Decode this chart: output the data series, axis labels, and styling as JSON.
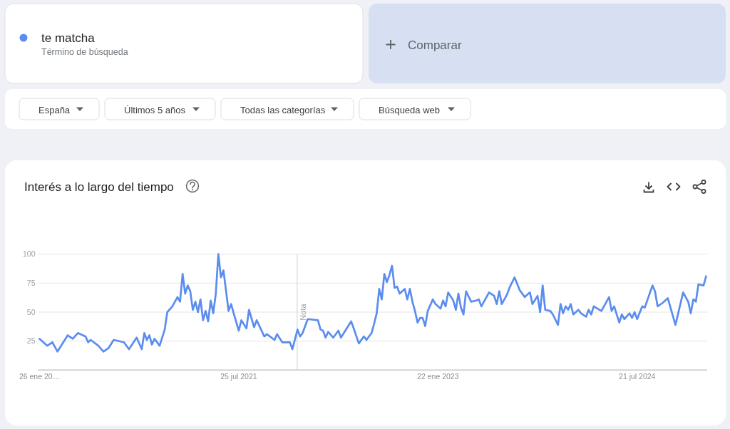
{
  "chart_data": {
    "type": "line",
    "title": "Interés a lo largo del tiempo",
    "annotations": [
      "Término de búsqueda",
      "Comparar",
      "España",
      "Últimos 5 años",
      "Todas las categorías",
      "Búsqueda web"
    ],
    "x": [
      "2020-01-26",
      "2020-02-16",
      "2020-03-01",
      "2020-03-15",
      "2020-04-12",
      "2020-04-26",
      "2020-05-10",
      "2020-05-31",
      "2020-06-07",
      "2020-06-14",
      "2020-07-05",
      "2020-07-19",
      "2020-08-02",
      "2020-08-16",
      "2020-09-13",
      "2020-09-27",
      "2020-10-18",
      "2020-11-01",
      "2020-11-08",
      "2020-11-15",
      "2020-11-22",
      "2020-11-29",
      "2020-12-06",
      "2020-12-20",
      "2021-01-03",
      "2021-01-10",
      "2021-01-24",
      "2021-02-07",
      "2021-02-14",
      "2021-02-21",
      "2021-02-28",
      "2021-03-07",
      "2021-03-14",
      "2021-03-21",
      "2021-03-28",
      "2021-04-04",
      "2021-04-11",
      "2021-04-18",
      "2021-04-25",
      "2021-05-02",
      "2021-05-09",
      "2021-05-16",
      "2021-05-23",
      "2021-05-30",
      "2021-06-06",
      "2021-06-13",
      "2021-06-27",
      "2021-07-04",
      "2021-07-11",
      "2021-07-25",
      "2021-08-01",
      "2021-08-15",
      "2021-08-22",
      "2021-09-05",
      "2021-09-12",
      "2021-10-03",
      "2021-10-10",
      "2021-10-31",
      "2021-11-07",
      "2021-11-21",
      "2021-12-12",
      "2021-12-19",
      "2022-01-02",
      "2022-01-09",
      "2022-01-16",
      "2022-01-30",
      "2022-02-27",
      "2022-03-06",
      "2022-03-13",
      "2022-03-20",
      "2022-03-27",
      "2022-04-10",
      "2022-04-24",
      "2022-05-01",
      "2022-05-29",
      "2022-06-05",
      "2022-06-19",
      "2022-07-03",
      "2022-07-10",
      "2022-07-24",
      "2022-07-31",
      "2022-08-07",
      "2022-08-14",
      "2022-08-21",
      "2022-08-28",
      "2022-09-04",
      "2022-09-11",
      "2022-09-18",
      "2022-09-25",
      "2022-10-02",
      "2022-10-09",
      "2022-10-23",
      "2022-10-30",
      "2022-11-06",
      "2022-11-13",
      "2022-11-20",
      "2022-11-27",
      "2022-12-04",
      "2022-12-11",
      "2022-12-18",
      "2022-12-25",
      "2023-01-08",
      "2023-01-15",
      "2023-01-29",
      "2023-02-05",
      "2023-02-12",
      "2023-02-19",
      "2023-03-05",
      "2023-03-12",
      "2023-03-19",
      "2023-03-26",
      "2023-04-02",
      "2023-04-09",
      "2023-04-23",
      "2023-05-07",
      "2023-05-14",
      "2023-05-21",
      "2023-05-28",
      "2023-06-11",
      "2023-06-25",
      "2023-07-02",
      "2023-07-09",
      "2023-07-16",
      "2023-07-30",
      "2023-08-06",
      "2023-08-20",
      "2023-09-03",
      "2023-09-17",
      "2023-10-01",
      "2023-10-08",
      "2023-10-22",
      "2023-10-29",
      "2023-11-05",
      "2023-11-12",
      "2023-11-26",
      "2023-12-03",
      "2023-12-17",
      "2023-12-24",
      "2023-12-31",
      "2024-01-07",
      "2024-01-14",
      "2024-01-21",
      "2024-01-28",
      "2024-02-11",
      "2024-02-18",
      "2024-03-03",
      "2024-03-10",
      "2024-03-17",
      "2024-03-24",
      "2024-04-14",
      "2024-05-05",
      "2024-05-12",
      "2024-05-19",
      "2024-06-02",
      "2024-06-09",
      "2024-06-16",
      "2024-06-30",
      "2024-07-07",
      "2024-07-14",
      "2024-07-21",
      "2024-08-04",
      "2024-08-11",
      "2024-09-01",
      "2024-09-08",
      "2024-09-15",
      "2024-09-29",
      "2024-10-13",
      "2024-11-03",
      "2024-11-24",
      "2024-12-08",
      "2024-12-15",
      "2024-12-22",
      "2024-12-29",
      "2025-01-05",
      "2025-01-19",
      "2025-01-26"
    ],
    "series": [
      {
        "name": "te matcha",
        "color": "#5b8def",
        "values": [
          27,
          21,
          24,
          16,
          30,
          27,
          32,
          29,
          24,
          26,
          21,
          16,
          19,
          26,
          24,
          18,
          28,
          18,
          32,
          26,
          30,
          22,
          27,
          21,
          35,
          50,
          55,
          63,
          59,
          83,
          66,
          73,
          68,
          52,
          59,
          50,
          61,
          43,
          51,
          42,
          60,
          49,
          66,
          100,
          80,
          86,
          51,
          57,
          49,
          34,
          43,
          36,
          52,
          37,
          43,
          29,
          31,
          26,
          31,
          24,
          24,
          18,
          35,
          29,
          32,
          44,
          43,
          35,
          34,
          28,
          33,
          28,
          34,
          28,
          42,
          36,
          23,
          29,
          26,
          32,
          40,
          49,
          70,
          61,
          83,
          76,
          82,
          90,
          71,
          72,
          66,
          70,
          61,
          70,
          59,
          51,
          41,
          45,
          45,
          38,
          51,
          61,
          57,
          53,
          60,
          55,
          67,
          60,
          52,
          66,
          54,
          48,
          68,
          59,
          60,
          61,
          55,
          59,
          67,
          64,
          57,
          68,
          57,
          65,
          71,
          80,
          69,
          63,
          67,
          57,
          64,
          50,
          73,
          52,
          51,
          48,
          39,
          57,
          49,
          55,
          52,
          57,
          48,
          52,
          49,
          46,
          52,
          48,
          55,
          51,
          63,
          51,
          55,
          41,
          48,
          44,
          49,
          45,
          50,
          44,
          55,
          54,
          73,
          68,
          55,
          58,
          62,
          39,
          67,
          59,
          49,
          61,
          59,
          74,
          73,
          81
        ]
      }
    ],
    "xlim": [
      "2020-01-21",
      "2025-01-29"
    ],
    "xticks": [
      {
        "value": "2020-01-26",
        "label": "26 ene 20…"
      },
      {
        "value": "2021-07-25",
        "label": "25 jul 2021"
      },
      {
        "value": "2023-01-22",
        "label": "22 ene 2023"
      },
      {
        "value": "2024-07-21",
        "label": "21 jul 2024"
      }
    ],
    "ylim": [
      0,
      100
    ],
    "yticks": [
      25,
      50,
      75,
      100
    ],
    "grid": "y",
    "legend": "top left",
    "ref_lines": [
      {
        "axis": "x",
        "value": "2022-01-01",
        "label": "Nota",
        "color": "#cfcfcf"
      }
    ]
  }
}
